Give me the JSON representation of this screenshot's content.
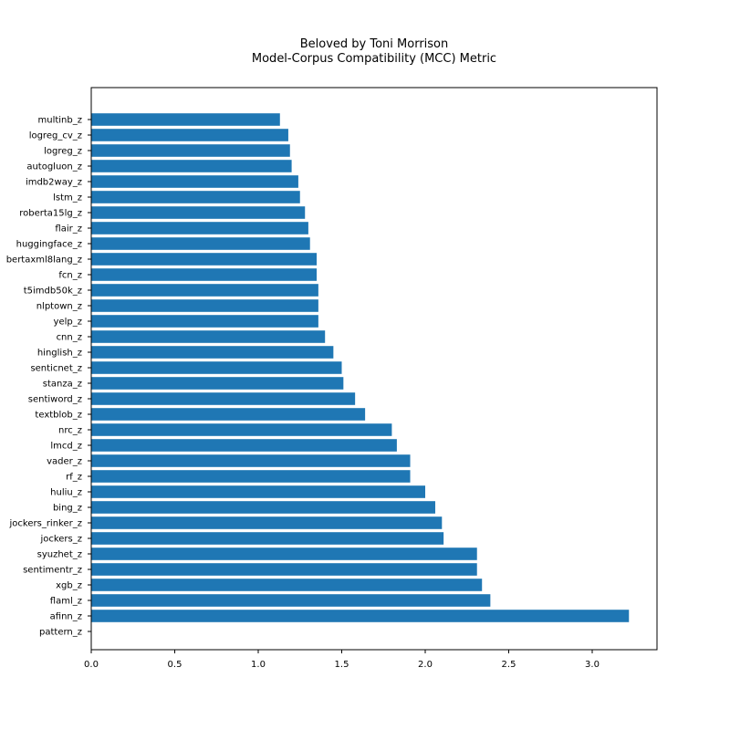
{
  "colors": {
    "bar": "#1f77b4",
    "axis": "#000000",
    "background": "#ffffff"
  },
  "chart_data": {
    "type": "bar",
    "orientation": "horizontal",
    "title": "Beloved by Toni Morrison",
    "subtitle": "Model-Corpus Compatibility (MCC) Metric",
    "xlabel": "",
    "ylabel": "",
    "xlim": [
      0,
      3.39
    ],
    "xticks": [
      0.0,
      0.5,
      1.0,
      1.5,
      2.0,
      2.5,
      3.0
    ],
    "xtick_labels": [
      "0.0",
      "0.5",
      "1.0",
      "1.5",
      "2.0",
      "2.5",
      "3.0"
    ],
    "grid": false,
    "legend": "none",
    "categories": [
      "multinb_z",
      "logreg_cv_z",
      "logreg_z",
      "autogluon_z",
      "imdb2way_z",
      "lstm_z",
      "roberta15lg_z",
      "flair_z",
      "huggingface_z",
      "bertaxml8lang_z",
      "fcn_z",
      "t5imdb50k_z",
      "nlptown_z",
      "yelp_z",
      "cnn_z",
      "hinglish_z",
      "senticnet_z",
      "stanza_z",
      "sentiword_z",
      "textblob_z",
      "nrc_z",
      "lmcd_z",
      "vader_z",
      "rf_z",
      "huliu_z",
      "bing_z",
      "jockers_rinker_z",
      "jockers_z",
      "syuzhet_z",
      "sentimentr_z",
      "xgb_z",
      "flaml_z",
      "afinn_z",
      "pattern_z"
    ],
    "values": [
      1.13,
      1.18,
      1.19,
      1.2,
      1.24,
      1.25,
      1.28,
      1.3,
      1.31,
      1.35,
      1.35,
      1.36,
      1.36,
      1.36,
      1.4,
      1.45,
      1.5,
      1.51,
      1.58,
      1.64,
      1.8,
      1.83,
      1.91,
      1.91,
      2.0,
      2.06,
      2.1,
      2.11,
      2.31,
      2.31,
      2.34,
      2.39,
      3.22,
      0.0
    ]
  }
}
